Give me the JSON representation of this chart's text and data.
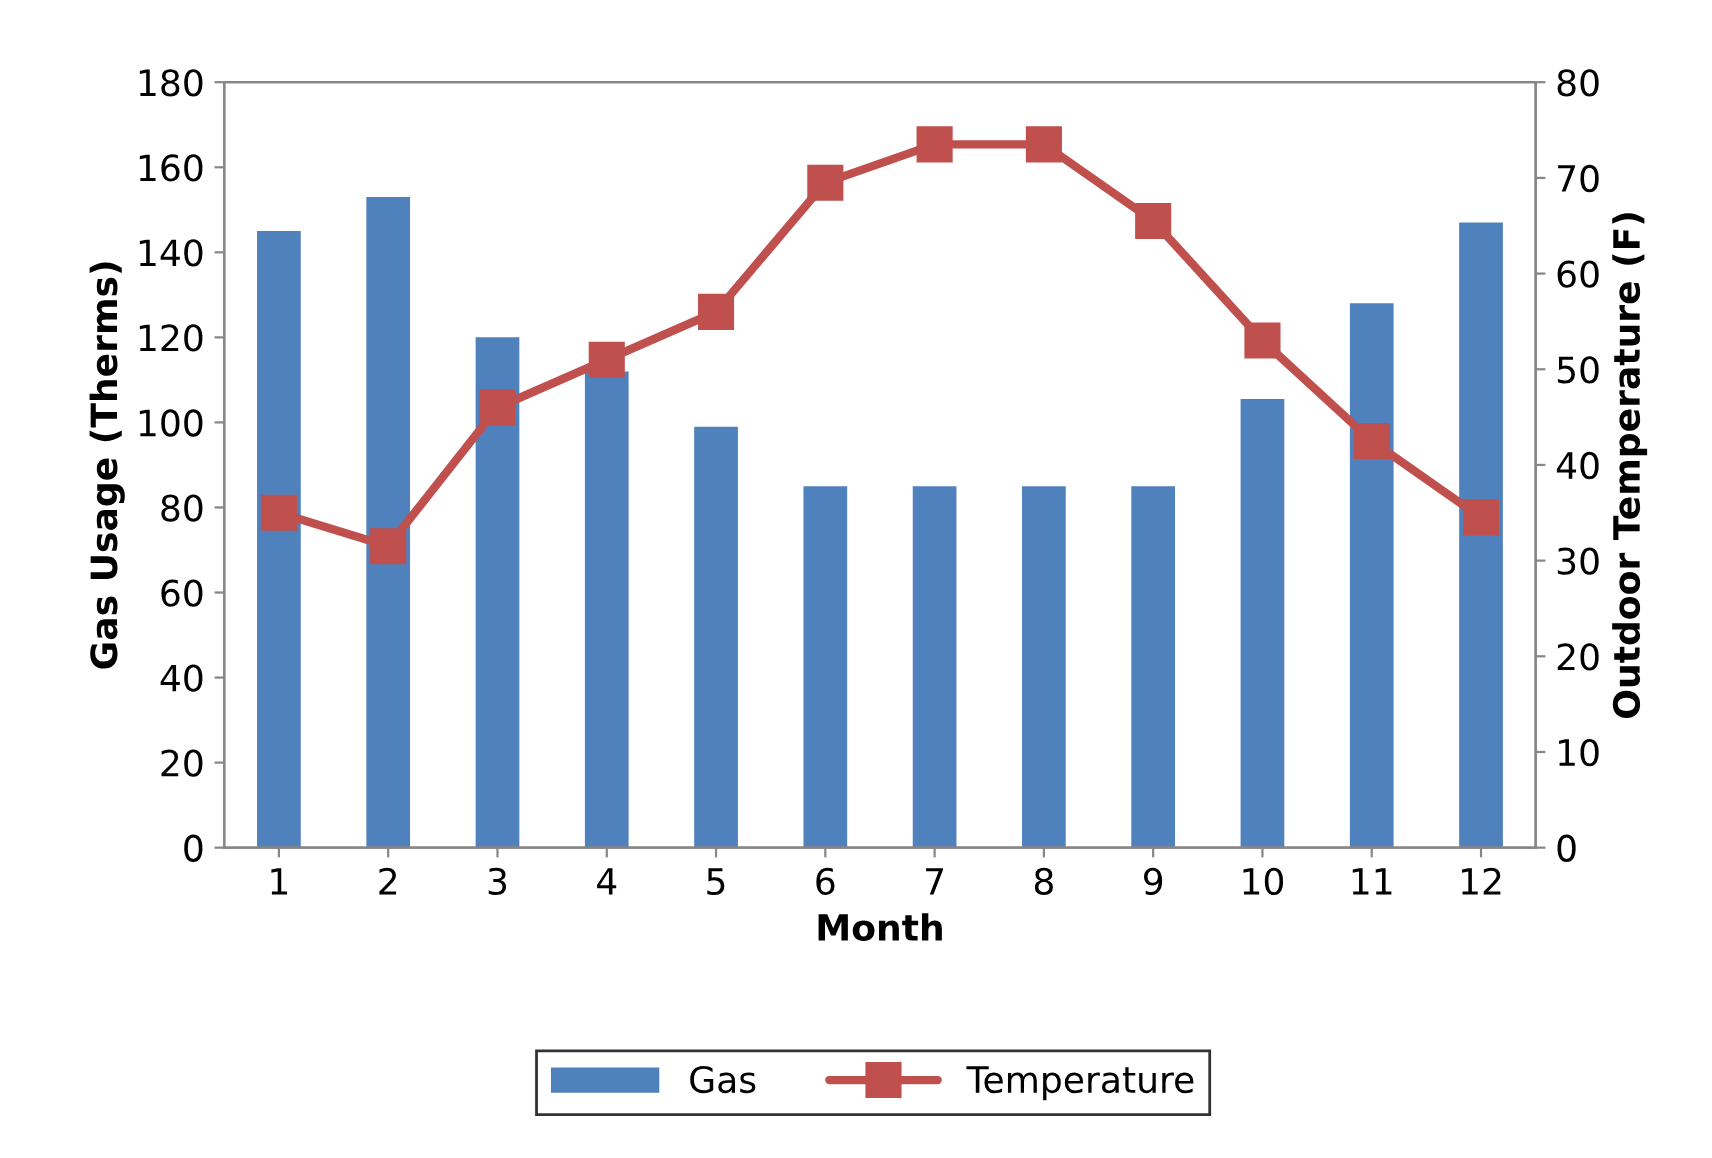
{
  "chart_data": {
    "type": "bar",
    "xlabel": "Month",
    "ylabel": "Gas Usage (Therms)",
    "y2label": "Outdoor Temperature (F)",
    "categories": [
      "1",
      "2",
      "3",
      "4",
      "5",
      "6",
      "7",
      "8",
      "9",
      "10",
      "11",
      "12"
    ],
    "series": [
      {
        "name": "Gas",
        "color": "#4f81bd",
        "values": [
          145,
          153,
          120,
          112,
          99,
          85,
          85,
          85,
          85,
          105.5,
          128,
          147
        ]
      },
      {
        "name": "Temperature",
        "type": "line",
        "axis": "y2",
        "color": "#c0504d",
        "marker": "square",
        "line_style": "solid",
        "values": [
          35,
          31.5,
          46,
          51,
          56,
          69.5,
          73.5,
          73.5,
          65.5,
          53,
          42.5,
          34.5
        ]
      }
    ],
    "ylim": [
      0,
      180
    ],
    "yticks": [
      0,
      20,
      40,
      60,
      80,
      100,
      120,
      140,
      160,
      180
    ],
    "y2lim": [
      0,
      80
    ],
    "y2ticks": [
      0,
      10,
      20,
      30,
      40,
      50,
      60,
      70,
      80
    ],
    "grid": false,
    "legend": "bottom"
  }
}
